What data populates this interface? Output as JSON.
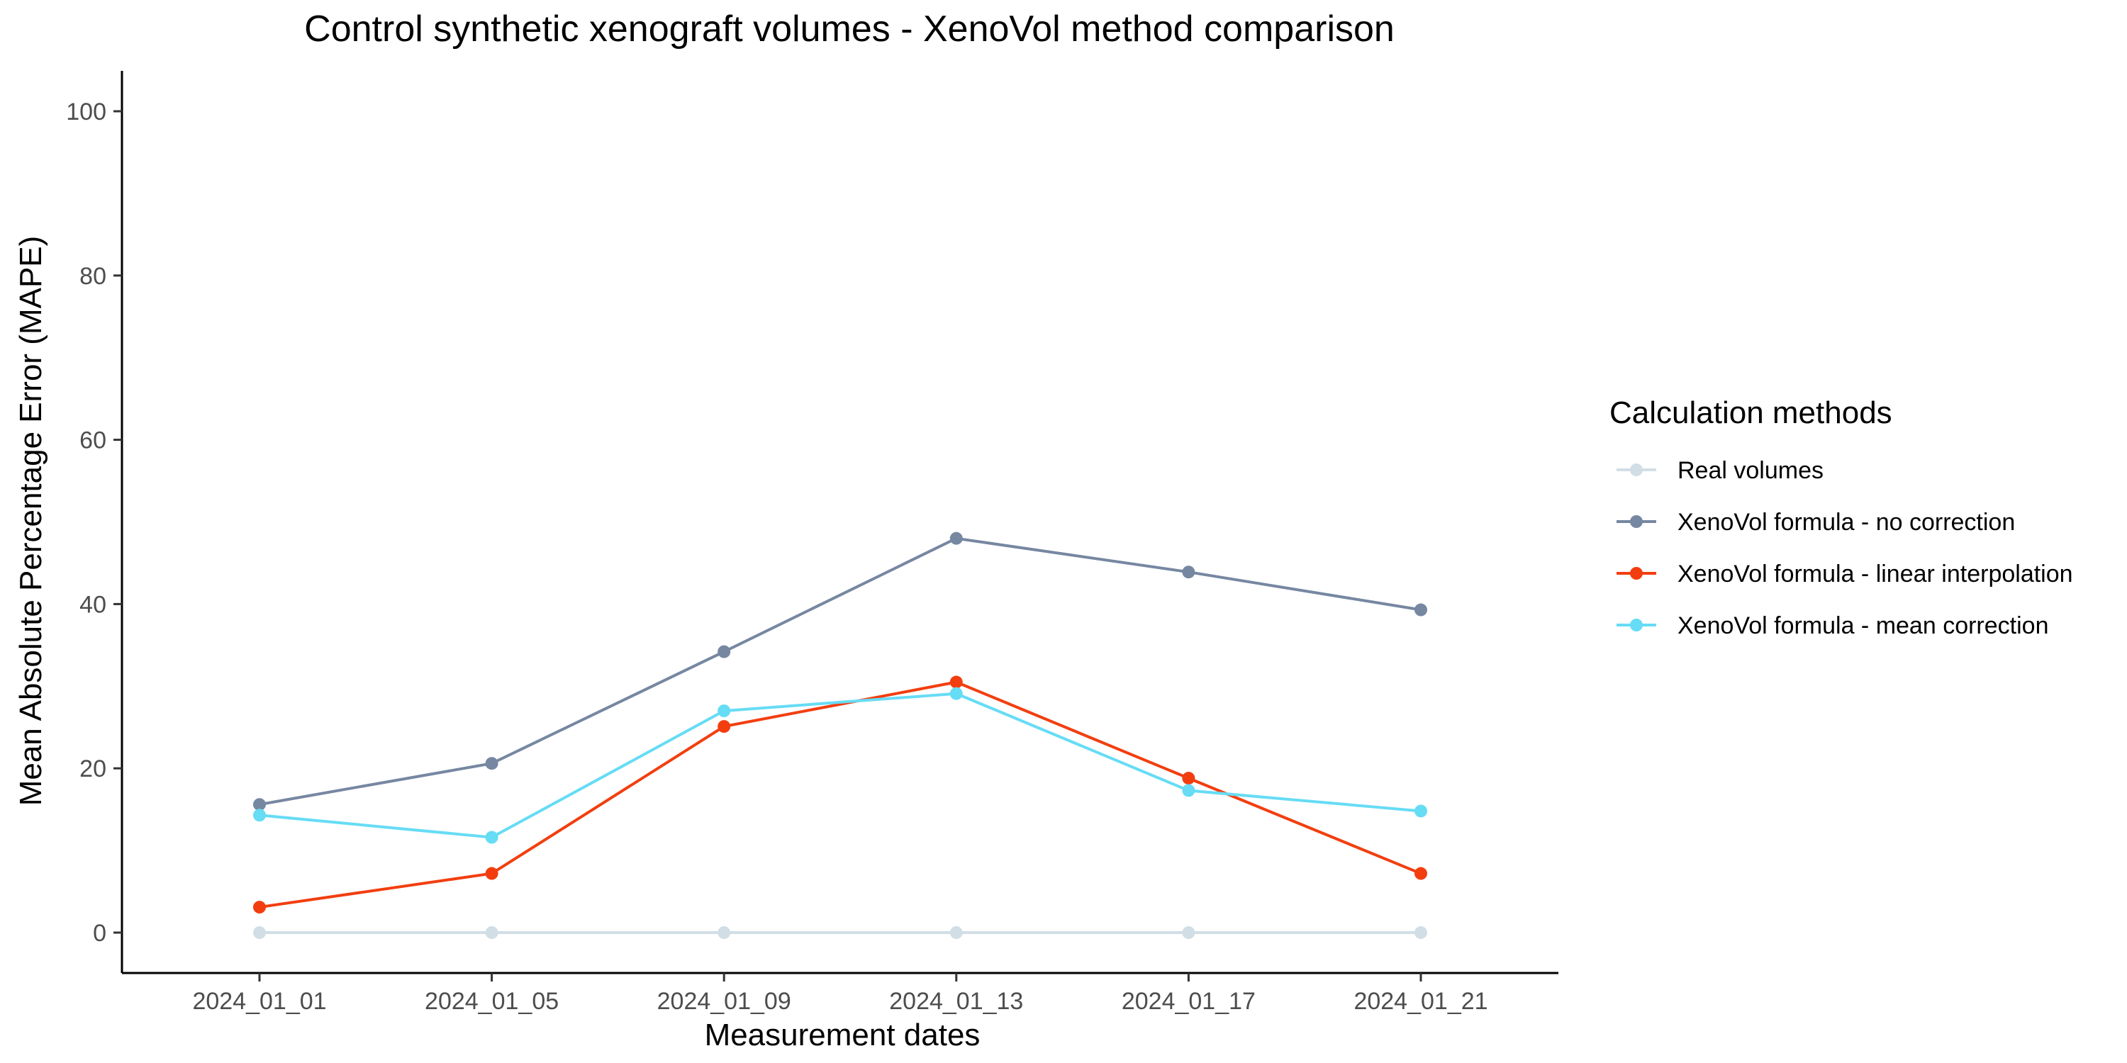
{
  "chart_data": {
    "type": "line",
    "title": "Control synthetic xenograft volumes - XenoVol method comparison",
    "xlabel": "Measurement dates",
    "ylabel": "Mean Absolute Percentage Error (MAPE)",
    "categories": [
      "2024_01_01",
      "2024_01_05",
      "2024_01_09",
      "2024_01_13",
      "2024_01_17",
      "2024_01_21"
    ],
    "ylim": [
      -5,
      105
    ],
    "yticks": [
      0,
      20,
      40,
      60,
      80,
      100
    ],
    "grid": false,
    "legend": {
      "title": "Calculation methods",
      "position": "right"
    },
    "series": [
      {
        "name": "Real volumes",
        "color": "#d2dee6",
        "values": [
          0,
          0,
          0,
          0,
          0,
          0
        ]
      },
      {
        "name": "XenoVol formula - no correction",
        "color": "#7687a1",
        "values": [
          15.6,
          20.6,
          34.2,
          48.0,
          43.9,
          39.3
        ]
      },
      {
        "name": "XenoVol formula - linear interpolation",
        "color": "#f23e0f",
        "values": [
          3.1,
          7.2,
          25.1,
          30.5,
          18.8,
          7.2
        ]
      },
      {
        "name": "XenoVol formula - mean correction",
        "color": "#66dcf5",
        "values": [
          14.3,
          11.6,
          27.0,
          29.1,
          17.3,
          14.8
        ]
      }
    ]
  }
}
